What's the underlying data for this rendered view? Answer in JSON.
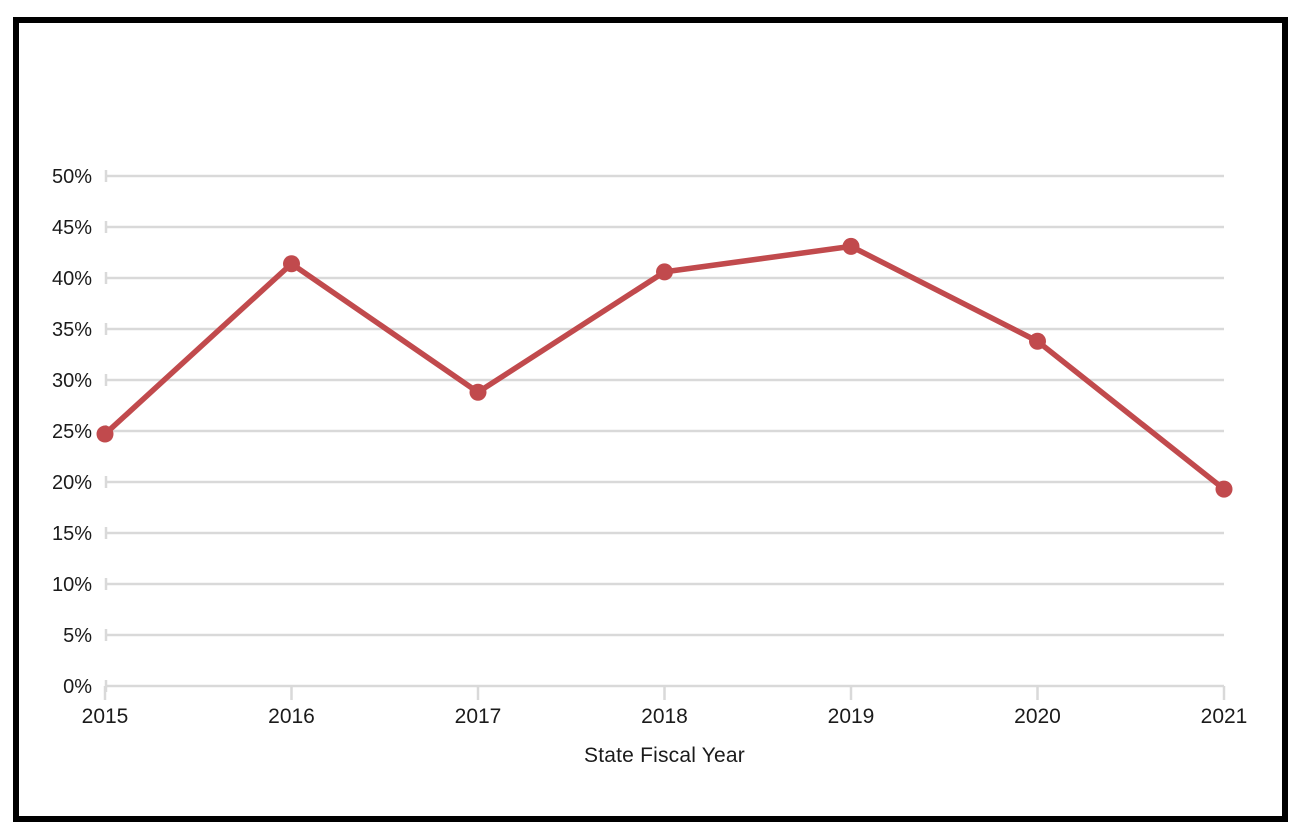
{
  "chart_data": {
    "type": "line",
    "title": "",
    "categories": [
      "2015",
      "2016",
      "2017",
      "2018",
      "2019",
      "2020",
      "2021"
    ],
    "values": [
      24.7,
      41.4,
      28.8,
      40.6,
      43.1,
      33.8,
      19.3
    ],
    "xlabel": "State Fiscal Year",
    "ylabel": "",
    "ylim": [
      0,
      50
    ],
    "ytick_step": 5,
    "ytick_labels": [
      "0%",
      "5%",
      "10%",
      "15%",
      "20%",
      "25%",
      "30%",
      "35%",
      "40%",
      "45%",
      "50%"
    ],
    "grid": "horizontal",
    "legend": "none",
    "line_color": "#C14A4D",
    "marker": "circle",
    "gridline_color": "#D9D9D9",
    "text_color": "#1b1b1b"
  }
}
